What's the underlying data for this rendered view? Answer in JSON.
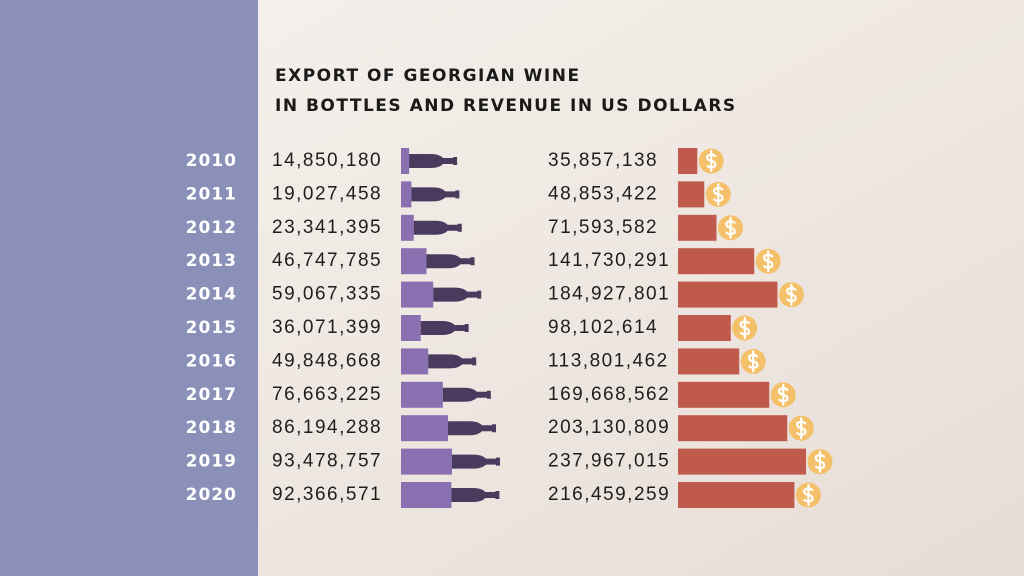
{
  "chart_data": {
    "type": "bar",
    "title": "EXPORT OF GEORGIAN WINE",
    "subtitle": "IN BOTTLES AND REVENUE IN US DOLLARS",
    "categories": [
      "2010",
      "2011",
      "2012",
      "2013",
      "2014",
      "2015",
      "2016",
      "2017",
      "2018",
      "2019",
      "2020"
    ],
    "series": [
      {
        "color": "#8a70b0",
        "values": [
          14850180,
          19027458,
          23341395,
          46747785,
          59067335,
          36071399,
          49848668,
          76663225,
          86194288,
          93478757,
          92366571
        ],
        "value_labels": [
          "14,850,180",
          "19,027,458",
          "23,341,395",
          "46,747,785",
          "59,067,335",
          "36,071,399",
          "49,848,668",
          "76,663,225",
          "86,194,288",
          "93,478,757",
          "92,366,571"
        ]
      },
      {
        "color": "#c05a4c",
        "values": [
          35857138,
          48853422,
          71593582,
          141730291,
          184927801,
          98102614,
          113801462,
          169668562,
          203130809,
          237967015,
          216459259
        ],
        "value_labels": [
          "35,857,138",
          "48,853,422",
          "71,593,582",
          "141,730,291",
          "184,927,801",
          "98,102,614",
          "113,801,462",
          "169,668,562",
          "203,130,809",
          "237,967,015",
          "216,459,259"
        ]
      }
    ]
  }
}
